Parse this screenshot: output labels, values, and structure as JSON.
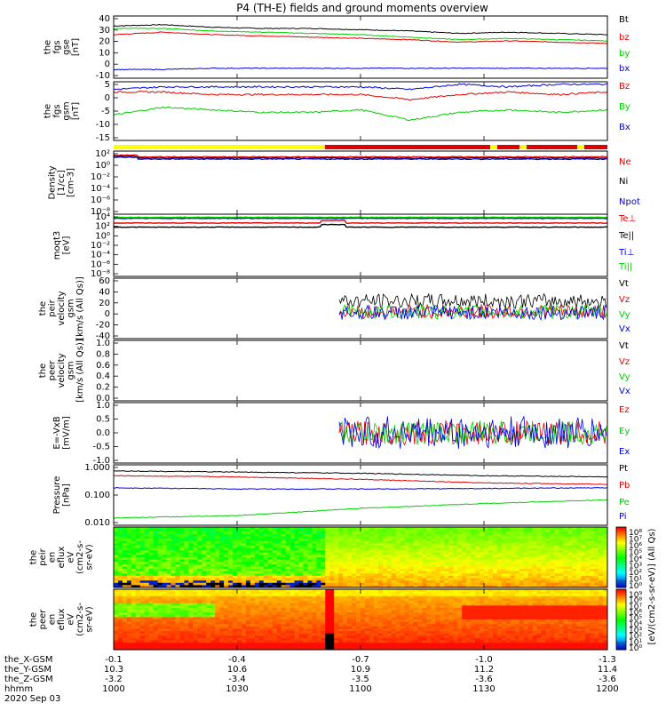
{
  "title": "P4 (TH-E) fields and ground moments overview",
  "colors": {
    "black": "#000000",
    "red": "#e00000",
    "green": "#00d000",
    "blue": "#0000e0",
    "yellow": "#ffff00"
  },
  "x_axis": {
    "rows": [
      {
        "label": "the_X-GSM",
        "values": [
          "-0.1",
          "-0.4",
          "-0.7",
          "-1.0",
          "-1.3"
        ]
      },
      {
        "label": "the_Y-GSM",
        "values": [
          "10.3",
          "10.6",
          "10.9",
          "11.2",
          "11.4"
        ]
      },
      {
        "label": "the_Z-GSM",
        "values": [
          "-3.2",
          "-3.4",
          "-3.5",
          "-3.6",
          "-3.6"
        ]
      },
      {
        "label": "hhmm",
        "values": [
          "1000",
          "1030",
          "1100",
          "1130",
          "1200"
        ]
      }
    ],
    "date": "2020 Sep 03"
  },
  "flux_colorbar_label": "[eV/(cm2-s-sr-eV)] (All Qs)",
  "chart_data": [
    {
      "type": "line",
      "ylabel": [
        "the",
        "fgs",
        "gse",
        "[nT]"
      ],
      "yticks": [
        "40",
        "30",
        "20",
        "10",
        "0",
        "-10"
      ],
      "ylim": [
        -10,
        40
      ],
      "series": [
        {
          "name": "Bt",
          "color": "black",
          "values": [
            32,
            33,
            31,
            30,
            30,
            29,
            28,
            26,
            27,
            26,
            25
          ]
        },
        {
          "name": "bz",
          "color": "red",
          "values": [
            25,
            27,
            25,
            24,
            23,
            22,
            21,
            19,
            20,
            19,
            18
          ]
        },
        {
          "name": "by",
          "color": "green",
          "values": [
            30,
            30,
            28,
            27,
            26,
            25,
            23,
            21,
            22,
            21,
            20
          ]
        },
        {
          "name": "bx",
          "color": "blue",
          "values": [
            -3,
            -3,
            -2,
            -2,
            -2,
            -2,
            -2,
            -2,
            -2,
            -2,
            -2
          ]
        }
      ]
    },
    {
      "type": "line",
      "ylabel": [
        "the",
        "fgs",
        "gsm",
        "[nT]"
      ],
      "yticks": [
        "5",
        "0",
        "-5",
        "-10",
        "-15"
      ],
      "ylim": [
        -18,
        5
      ],
      "series": [
        {
          "name": "Bz",
          "color": "red",
          "values": [
            1,
            1,
            0,
            0,
            0,
            0,
            -2,
            0,
            1,
            0,
            1
          ]
        },
        {
          "name": "By",
          "color": "green",
          "values": [
            -8,
            -5,
            -6,
            -7,
            -7,
            -6,
            -10,
            -7,
            -6,
            -7,
            -6
          ]
        },
        {
          "name": "Bx",
          "color": "blue",
          "values": [
            2,
            3,
            3,
            3,
            3,
            3,
            2,
            4,
            3,
            4,
            4
          ]
        }
      ]
    },
    {
      "type": "line",
      "ylabel": [
        "Density",
        "[1/cc]",
        "[cm-3]"
      ],
      "yticks": [
        "10²",
        "10⁰",
        "10⁻²",
        "10⁻⁴",
        "10⁻⁶",
        "10⁻⁸"
      ],
      "ylim": [
        -8,
        3
      ],
      "series": [
        {
          "name": "Ne",
          "color": "red"
        },
        {
          "name": "Ni",
          "color": "black"
        },
        {
          "name": "Npot",
          "color": "blue"
        }
      ]
    },
    {
      "type": "line",
      "ylabel": [
        "moqt3",
        "[eV]"
      ],
      "yticks": [
        "10⁴",
        "10²",
        "10⁰",
        "10⁻²",
        "10⁻⁴",
        "10⁻⁶",
        "10⁻⁸"
      ],
      "ylim": [
        -8,
        4
      ],
      "series": [
        {
          "name": "Te⊥",
          "color": "red"
        },
        {
          "name": "Te||",
          "color": "black"
        },
        {
          "name": "Ti⊥",
          "color": "blue"
        },
        {
          "name": "Ti||",
          "color": "green"
        }
      ]
    },
    {
      "type": "line",
      "ylabel": [
        "the",
        "peir",
        "velocity",
        "gsm",
        "[km/s (All Qs)]"
      ],
      "yticks": [
        "60",
        "40",
        "20",
        "0",
        "-20",
        "-40"
      ],
      "ylim": [
        -40,
        60
      ],
      "series": [
        {
          "name": "Vt",
          "color": "black"
        },
        {
          "name": "Vz",
          "color": "red"
        },
        {
          "name": "Vy",
          "color": "green"
        },
        {
          "name": "Vx",
          "color": "blue"
        }
      ]
    },
    {
      "type": "line",
      "ylabel": [
        "the",
        "peer",
        "velocity",
        "gsm",
        "[km/s (All Qs)]"
      ],
      "yticks": [
        "1.0",
        "0.8",
        "0.6",
        "0.4",
        "0.2",
        "0.0"
      ],
      "ylim": [
        0,
        1
      ],
      "series": [
        {
          "name": "Vt",
          "color": "black"
        },
        {
          "name": "Vz",
          "color": "red"
        },
        {
          "name": "Vy",
          "color": "green"
        },
        {
          "name": "Vx",
          "color": "blue"
        }
      ]
    },
    {
      "type": "line",
      "ylabel": [
        "E=-VxB",
        "[mV/m]"
      ],
      "yticks": [
        "1.0",
        "0.5",
        "0.0",
        "-0.5",
        "-1.0"
      ],
      "ylim": [
        -1,
        1
      ],
      "series": [
        {
          "name": "Ez",
          "color": "red"
        },
        {
          "name": "Ey",
          "color": "green"
        },
        {
          "name": "Ex",
          "color": "blue"
        }
      ]
    },
    {
      "type": "line",
      "ylabel": [
        "Pressure",
        "[nPa]"
      ],
      "yticks": [
        "1.000",
        "0.100",
        "0.010"
      ],
      "ylim": [
        -2.5,
        0
      ],
      "series": [
        {
          "name": "Pt",
          "color": "black"
        },
        {
          "name": "Pb",
          "color": "red"
        },
        {
          "name": "Pe",
          "color": "green"
        },
        {
          "name": "Pi",
          "color": "blue"
        }
      ]
    },
    {
      "type": "heatmap",
      "ylabel": [
        "the",
        "peir",
        "en",
        "eflux",
        "eV",
        "(cm2-s-",
        "sr-eV)"
      ],
      "yticks": [
        "10000",
        "1000",
        "100",
        "10"
      ],
      "colorbar_ticks": [
        "10⁸",
        "10⁷",
        "10⁶",
        "10⁵",
        "10⁴",
        "10³",
        "10²",
        "10¹",
        "10⁰"
      ]
    },
    {
      "type": "heatmap",
      "ylabel": [
        "the",
        "peer",
        "en",
        "eflux",
        "eV",
        "(cm2-s-",
        "sr-eV)"
      ],
      "yticks": [
        "10000",
        "1000",
        "100",
        "10"
      ],
      "colorbar_ticks": [
        "10⁹",
        "10⁸",
        "10⁷",
        "10⁶",
        "10⁵",
        "10⁴",
        "10³",
        "10²",
        "10¹",
        "10⁰"
      ]
    }
  ]
}
